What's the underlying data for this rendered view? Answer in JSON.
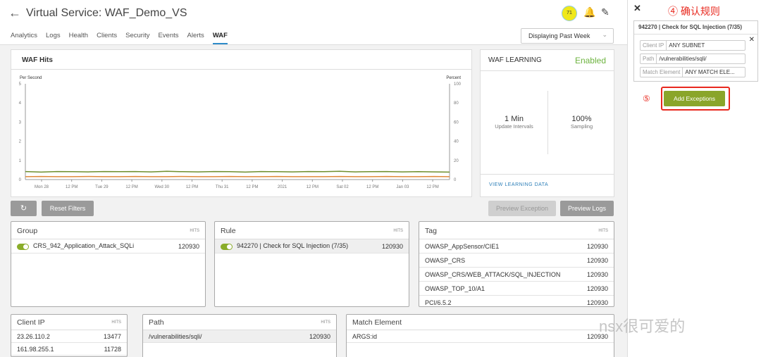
{
  "header": {
    "title": "Virtual Service:  WAF_Demo_VS",
    "avatar_text": "71",
    "time_range": "Displaying  Past Week"
  },
  "tabs": [
    {
      "label": "Analytics"
    },
    {
      "label": "Logs"
    },
    {
      "label": "Health"
    },
    {
      "label": "Clients"
    },
    {
      "label": "Security"
    },
    {
      "label": "Events"
    },
    {
      "label": "Alerts"
    },
    {
      "label": "WAF",
      "active": true
    }
  ],
  "chart_data": {
    "type": "line",
    "title": "WAF Hits",
    "ylabel": "Per Second",
    "y2label": "Percent",
    "ylim": [
      0,
      5
    ],
    "y2lim": [
      0,
      100
    ],
    "yticks": [
      "0",
      "1",
      "2",
      "3",
      "4",
      "5"
    ],
    "y2ticks": [
      "0",
      "20",
      "40",
      "60",
      "80",
      "100"
    ],
    "xticks": [
      "Mon 28",
      "12 PM",
      "Tue 29",
      "12 PM",
      "Wed 30",
      "12 PM",
      "Thu 31",
      "12 PM",
      "2021",
      "12 PM",
      "Sat 02",
      "12 PM",
      "Jan 03",
      "12 PM"
    ],
    "series": [
      {
        "color": "#6f8f2e",
        "values": [
          0.42,
          0.39,
          0.42,
          0.41,
          0.4,
          0.42,
          0.41,
          0.42,
          0.4,
          0.43,
          0.41,
          0.4,
          0.42,
          0.41,
          0.39,
          0.42,
          0.41,
          0.4,
          0.42,
          0.41,
          0.43,
          0.4,
          0.41,
          0.42,
          0.4,
          0.41,
          0.4,
          0.39
        ]
      },
      {
        "color": "#e08a3c",
        "values": [
          0.15,
          0.16,
          0.15,
          0.15,
          0.16,
          0.15,
          0.15,
          0.16,
          0.15,
          0.15,
          0.16,
          0.15,
          0.15,
          0.16,
          0.15,
          0.15,
          0.16,
          0.15,
          0.15,
          0.15,
          0.16,
          0.15,
          0.15,
          0.16,
          0.15,
          0.15,
          0.16,
          0.15
        ]
      }
    ]
  },
  "learning": {
    "title": "WAF LEARNING",
    "status": "Enabled",
    "interval_value": "1 Min",
    "interval_label": "Update Intervals",
    "sampling_value": "100%",
    "sampling_label": "Sampling",
    "link": "VIEW LEARNING DATA"
  },
  "toolbar": {
    "reset": "Reset Filters",
    "preview_exception": "Preview Exception",
    "preview_logs": "Preview Logs"
  },
  "hits_label": "HITS",
  "group": {
    "title": "Group",
    "rows": [
      {
        "name": "CRS_942_Application_Attack_SQLi",
        "hits": "120930"
      }
    ]
  },
  "rule": {
    "title": "Rule",
    "rows": [
      {
        "name": "942270 | Check for SQL Injection (7/35)",
        "hits": "120930"
      }
    ]
  },
  "tag": {
    "title": "Tag",
    "rows": [
      {
        "name": "OWASP_AppSensor/CIE1",
        "hits": "120930"
      },
      {
        "name": "OWASP_CRS",
        "hits": "120930"
      },
      {
        "name": "OWASP_CRS/WEB_ATTACK/SQL_INJECTION",
        "hits": "120930"
      },
      {
        "name": "OWASP_TOP_10/A1",
        "hits": "120930"
      },
      {
        "name": "PCI/6.5.2",
        "hits": "120930"
      }
    ]
  },
  "client_ip": {
    "title": "Client IP",
    "rows": [
      {
        "name": "23.26.110.2",
        "hits": "13477"
      },
      {
        "name": "161.98.255.1",
        "hits": "11728"
      }
    ]
  },
  "path": {
    "title": "Path",
    "rows": [
      {
        "name": "/vulnerabilities/sqli/",
        "hits": "120930"
      }
    ]
  },
  "match": {
    "title": "Match Element",
    "rows": [
      {
        "name": "ARGS:id",
        "hits": "120930"
      }
    ]
  },
  "side": {
    "annotation": "④ 确认规则",
    "rule_title": "942270 | Check for SQL Injection (7/35)",
    "fields": [
      {
        "label": "Client IP",
        "value": "ANY SUBNET"
      },
      {
        "label": "Path",
        "value": "/vulnerabilities/sqli/"
      },
      {
        "label": "Match Element",
        "value": "ANY MATCH ELE..."
      }
    ],
    "step": "⑤",
    "add_button": "Add Exceptions",
    "accent": "#8aa52a",
    "highlight": "#e8281e"
  },
  "watermark": "nsx很可爱的"
}
